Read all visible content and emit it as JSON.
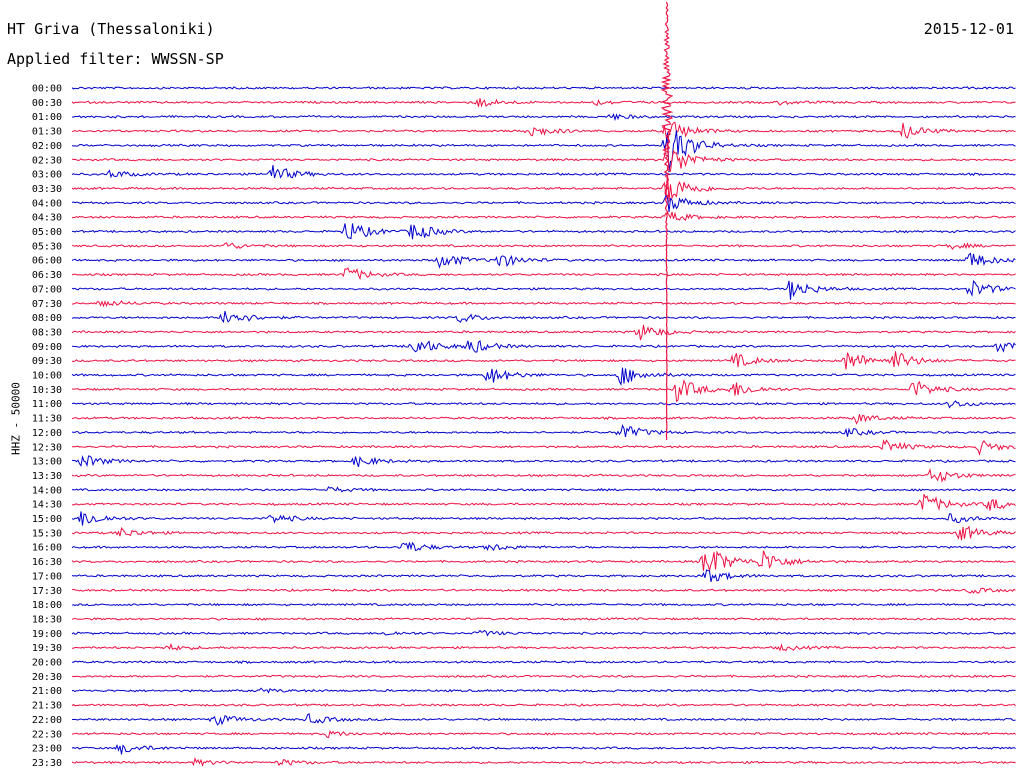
{
  "header": {
    "station": "HT Griva (Thessaloniki)",
    "date": "2015-12-01",
    "filter": "Applied filter: WWSSN-SP",
    "channel_label": "HHZ - 50000"
  },
  "chart_data": {
    "type": "line",
    "title": "HT Griva (Thessaloniki)",
    "subtitle": "Applied filter: WWSSN-SP",
    "ylabel": "HHZ - 50000",
    "xlabel": "",
    "colors": {
      "even_rows": "#0000cc",
      "odd_rows": "#ee1144"
    },
    "x_range_minutes": [
      0,
      30
    ],
    "rows": [
      {
        "label": "00:00",
        "events": []
      },
      {
        "label": "00:30",
        "events": [
          {
            "at": 0.43,
            "amp": 5
          },
          {
            "at": 0.55,
            "amp": 3
          },
          {
            "at": 0.75,
            "amp": 2
          }
        ]
      },
      {
        "label": "01:00",
        "events": [
          {
            "at": 0.57,
            "amp": 3
          }
        ]
      },
      {
        "label": "01:30",
        "events": [
          {
            "at": 0.48,
            "amp": 8
          },
          {
            "at": 0.63,
            "amp": 14
          },
          {
            "at": 0.88,
            "amp": 8
          }
        ]
      },
      {
        "label": "02:00",
        "events": [
          {
            "at": 0.63,
            "amp": 30
          }
        ]
      },
      {
        "label": "02:30",
        "events": [
          {
            "at": 0.63,
            "amp": 20
          }
        ]
      },
      {
        "label": "03:00",
        "events": [
          {
            "at": 0.04,
            "amp": 4
          },
          {
            "at": 0.21,
            "amp": 10
          }
        ]
      },
      {
        "label": "03:30",
        "events": [
          {
            "at": 0.63,
            "amp": 18
          }
        ]
      },
      {
        "label": "04:00",
        "events": [
          {
            "at": 0.63,
            "amp": 10
          }
        ]
      },
      {
        "label": "04:30",
        "events": [
          {
            "at": 0.63,
            "amp": 6
          }
        ]
      },
      {
        "label": "05:00",
        "events": [
          {
            "at": 0.29,
            "amp": 12
          },
          {
            "at": 0.36,
            "amp": 10
          }
        ]
      },
      {
        "label": "05:30",
        "events": [
          {
            "at": 0.16,
            "amp": 4
          },
          {
            "at": 0.93,
            "amp": 3
          }
        ]
      },
      {
        "label": "06:00",
        "events": [
          {
            "at": 0.39,
            "amp": 9
          },
          {
            "at": 0.45,
            "amp": 8
          },
          {
            "at": 0.95,
            "amp": 9
          }
        ]
      },
      {
        "label": "06:30",
        "events": [
          {
            "at": 0.29,
            "amp": 8
          }
        ]
      },
      {
        "label": "07:00",
        "events": [
          {
            "at": 0.76,
            "amp": 11
          },
          {
            "at": 0.95,
            "amp": 10
          }
        ]
      },
      {
        "label": "07:30",
        "events": [
          {
            "at": 0.03,
            "amp": 4
          }
        ]
      },
      {
        "label": "08:00",
        "events": [
          {
            "at": 0.16,
            "amp": 11
          },
          {
            "at": 0.41,
            "amp": 5
          }
        ]
      },
      {
        "label": "08:30",
        "events": [
          {
            "at": 0.6,
            "amp": 9
          }
        ]
      },
      {
        "label": "09:00",
        "events": [
          {
            "at": 0.36,
            "amp": 11
          },
          {
            "at": 0.42,
            "amp": 8
          },
          {
            "at": 0.98,
            "amp": 6
          }
        ]
      },
      {
        "label": "09:30",
        "events": [
          {
            "at": 0.7,
            "amp": 8
          },
          {
            "at": 0.82,
            "amp": 11
          },
          {
            "at": 0.87,
            "amp": 10
          }
        ]
      },
      {
        "label": "10:00",
        "events": [
          {
            "at": 0.44,
            "amp": 10
          },
          {
            "at": 0.58,
            "amp": 11
          }
        ]
      },
      {
        "label": "10:30",
        "events": [
          {
            "at": 0.64,
            "amp": 13
          },
          {
            "at": 0.7,
            "amp": 8
          },
          {
            "at": 0.89,
            "amp": 10
          }
        ]
      },
      {
        "label": "11:00",
        "events": [
          {
            "at": 0.93,
            "amp": 4
          }
        ]
      },
      {
        "label": "11:30",
        "events": [
          {
            "at": 0.83,
            "amp": 5
          }
        ]
      },
      {
        "label": "12:00",
        "events": [
          {
            "at": 0.58,
            "amp": 9
          },
          {
            "at": 0.82,
            "amp": 4
          }
        ]
      },
      {
        "label": "12:30",
        "events": [
          {
            "at": 0.86,
            "amp": 7
          },
          {
            "at": 0.96,
            "amp": 7
          }
        ]
      },
      {
        "label": "13:00",
        "events": [
          {
            "at": 0.01,
            "amp": 7
          },
          {
            "at": 0.3,
            "amp": 6
          }
        ]
      },
      {
        "label": "13:30",
        "events": [
          {
            "at": 0.91,
            "amp": 9
          }
        ]
      },
      {
        "label": "14:00",
        "events": [
          {
            "at": 0.27,
            "amp": 3
          }
        ]
      },
      {
        "label": "14:30",
        "events": [
          {
            "at": 0.9,
            "amp": 12
          },
          {
            "at": 0.97,
            "amp": 7
          }
        ]
      },
      {
        "label": "15:00",
        "events": [
          {
            "at": 0.01,
            "amp": 9
          },
          {
            "at": 0.21,
            "amp": 5
          },
          {
            "at": 0.93,
            "amp": 5
          }
        ]
      },
      {
        "label": "15:30",
        "events": [
          {
            "at": 0.05,
            "amp": 5
          },
          {
            "at": 0.94,
            "amp": 9
          }
        ]
      },
      {
        "label": "16:00",
        "events": [
          {
            "at": 0.35,
            "amp": 7
          },
          {
            "at": 0.44,
            "amp": 4
          }
        ]
      },
      {
        "label": "16:30",
        "events": [
          {
            "at": 0.67,
            "amp": 20
          },
          {
            "at": 0.73,
            "amp": 12
          }
        ]
      },
      {
        "label": "17:00",
        "events": [
          {
            "at": 0.67,
            "amp": 8
          }
        ]
      },
      {
        "label": "17:30",
        "events": [
          {
            "at": 0.95,
            "amp": 3
          }
        ]
      },
      {
        "label": "18:00",
        "events": []
      },
      {
        "label": "18:30",
        "events": []
      },
      {
        "label": "19:00",
        "events": [
          {
            "at": 0.33,
            "amp": 2
          },
          {
            "at": 0.43,
            "amp": 3
          }
        ]
      },
      {
        "label": "19:30",
        "events": [
          {
            "at": 0.1,
            "amp": 3
          },
          {
            "at": 0.75,
            "amp": 3
          }
        ]
      },
      {
        "label": "20:00",
        "events": []
      },
      {
        "label": "20:30",
        "events": []
      },
      {
        "label": "21:00",
        "events": [
          {
            "at": 0.2,
            "amp": 2
          }
        ]
      },
      {
        "label": "21:30",
        "events": []
      },
      {
        "label": "22:00",
        "events": [
          {
            "at": 0.15,
            "amp": 6
          },
          {
            "at": 0.25,
            "amp": 5
          }
        ]
      },
      {
        "label": "22:30",
        "events": [
          {
            "at": 0.27,
            "amp": 3
          }
        ]
      },
      {
        "label": "23:00",
        "events": [
          {
            "at": 0.05,
            "amp": 6
          }
        ]
      },
      {
        "label": "23:30",
        "events": [
          {
            "at": 0.13,
            "amp": 3
          },
          {
            "at": 0.22,
            "amp": 3
          }
        ]
      }
    ]
  }
}
